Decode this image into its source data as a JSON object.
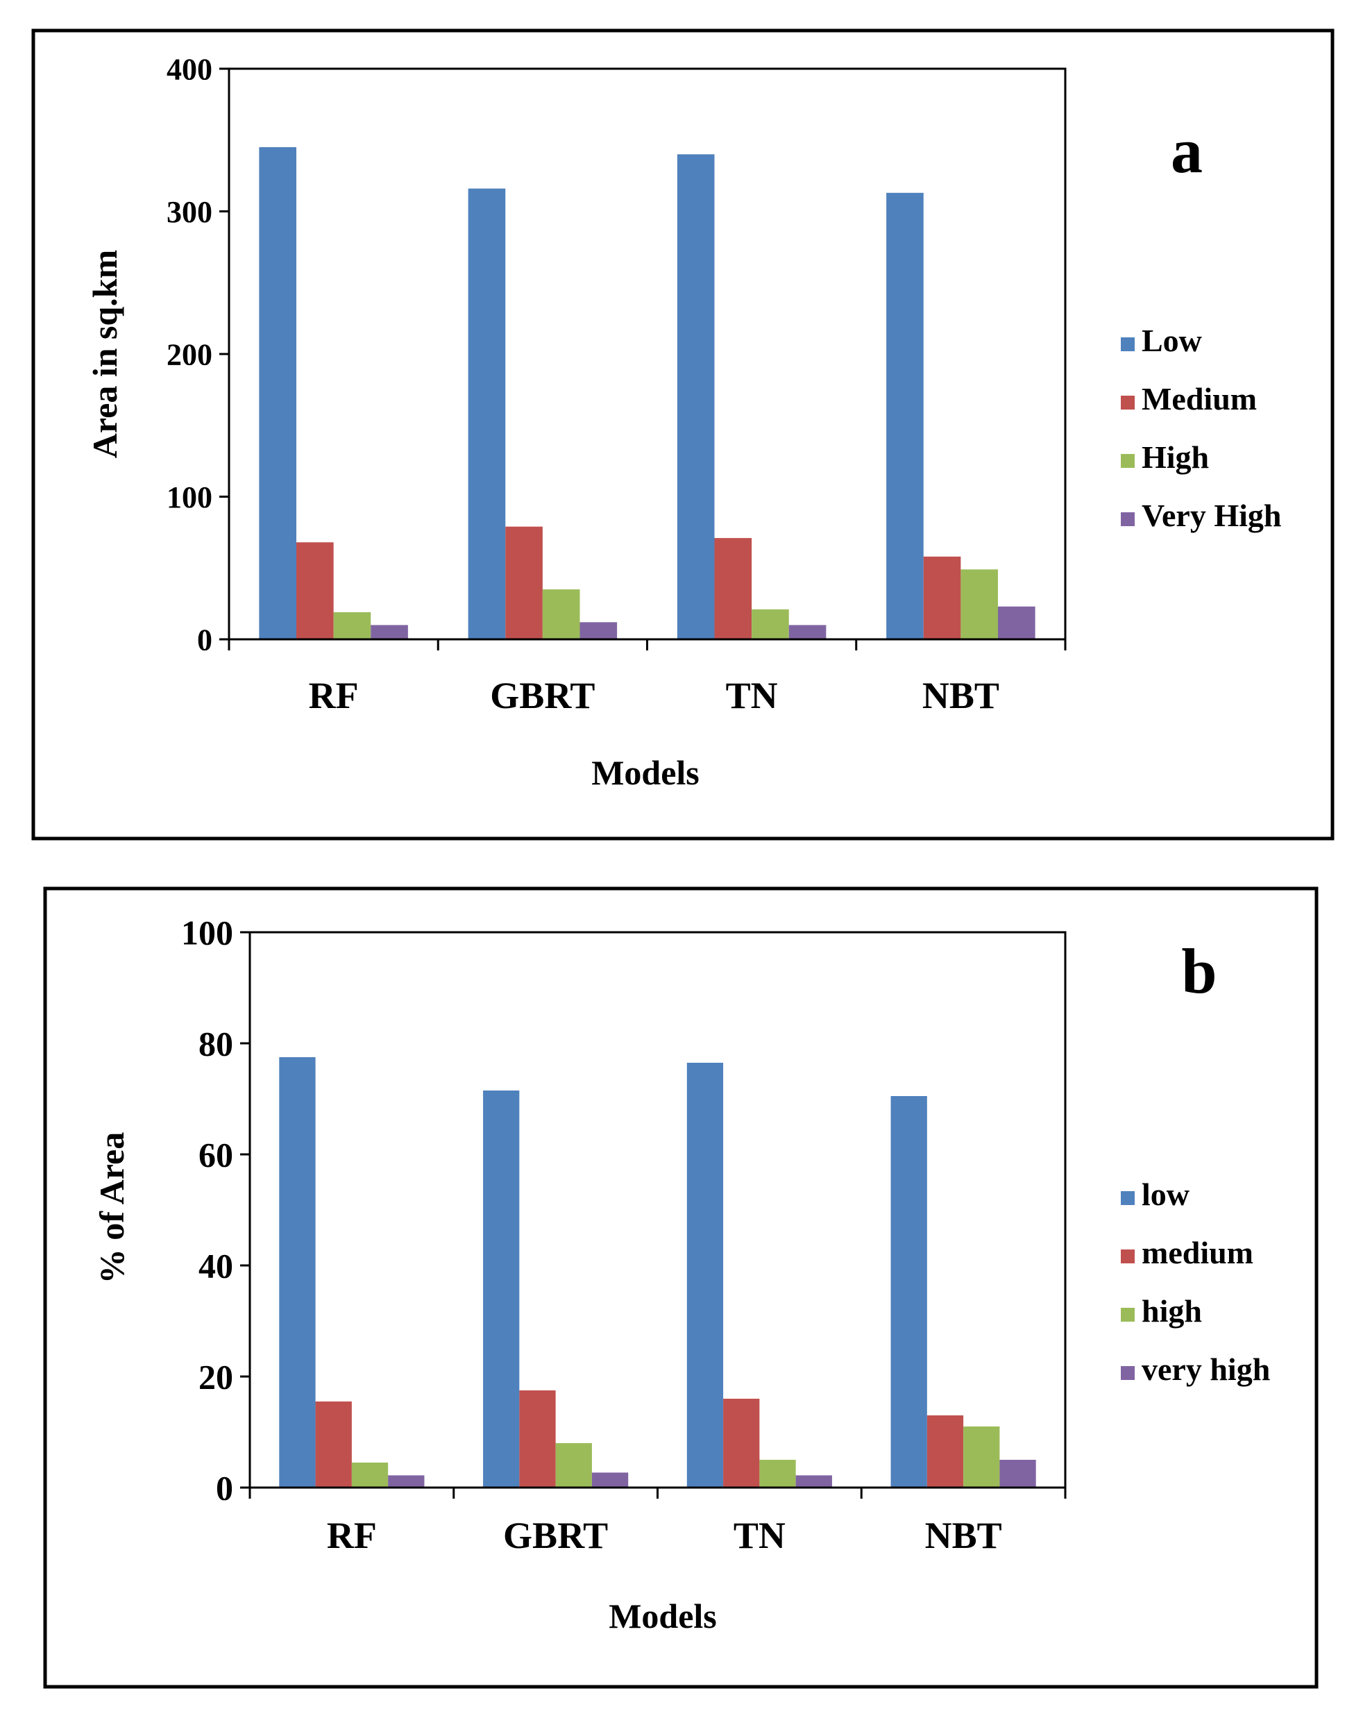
{
  "chart_data": [
    {
      "type": "bar",
      "panel_label": "a",
      "title": "",
      "xlabel": "Models",
      "ylabel": "Area in sq.km",
      "ylim": [
        0,
        400
      ],
      "yticks": [
        0,
        100,
        200,
        300,
        400
      ],
      "categories": [
        "RF",
        "GBRT",
        "TN",
        "NBT"
      ],
      "series": [
        {
          "name": "Low",
          "color": "#4f81bd",
          "values": [
            345,
            316,
            340,
            313
          ]
        },
        {
          "name": "Medium",
          "color": "#c0504d",
          "values": [
            68,
            79,
            71,
            58
          ]
        },
        {
          "name": "High",
          "color": "#9bbb59",
          "values": [
            19,
            35,
            21,
            49
          ]
        },
        {
          "name": "Very High",
          "color": "#8064a2",
          "values": [
            10,
            12,
            10,
            23
          ]
        }
      ],
      "legend_position": "right"
    },
    {
      "type": "bar",
      "panel_label": "b",
      "title": "",
      "xlabel": "Models",
      "ylabel": "% of Area",
      "ylim": [
        0,
        100
      ],
      "yticks": [
        0,
        20,
        40,
        60,
        80,
        100
      ],
      "categories": [
        "RF",
        "GBRT",
        "TN",
        "NBT"
      ],
      "series": [
        {
          "name": "low",
          "color": "#4f81bd",
          "values": [
            77.5,
            71.5,
            76.5,
            70.5
          ]
        },
        {
          "name": "medium",
          "color": "#c0504d",
          "values": [
            15.5,
            17.5,
            16,
            13
          ]
        },
        {
          "name": "high",
          "color": "#9bbb59",
          "values": [
            4.5,
            8,
            5,
            11
          ]
        },
        {
          "name": "very high",
          "color": "#8064a2",
          "values": [
            2.2,
            2.7,
            2.2,
            5
          ]
        }
      ],
      "legend_position": "right"
    }
  ]
}
